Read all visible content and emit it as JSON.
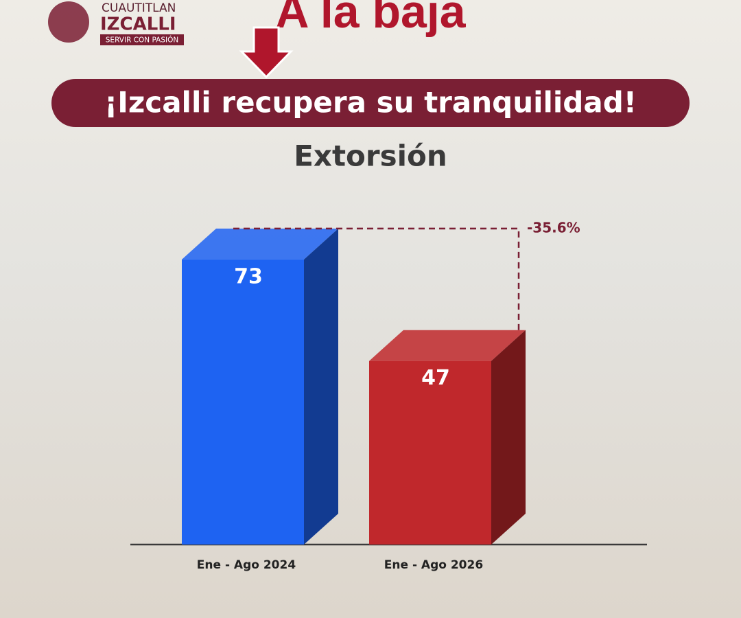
{
  "header": {
    "logo_top": "CUAUTITLAN",
    "logo_name": "IZCALLI",
    "logo_motto": "SERVIR CON PASIÓN",
    "headline": "A la baja",
    "banner": "¡Izcalli recupera su tranquilidad!"
  },
  "chart_data": {
    "type": "bar3d",
    "title": "Extorsión",
    "categories": [
      "Ene - Ago 2024",
      "Ene - Ago 2026"
    ],
    "values": [
      73,
      47
    ],
    "colors": [
      "#1e63f2",
      "#c0282c"
    ],
    "ylim": [
      0,
      80
    ],
    "annotation": "-35.6%"
  }
}
